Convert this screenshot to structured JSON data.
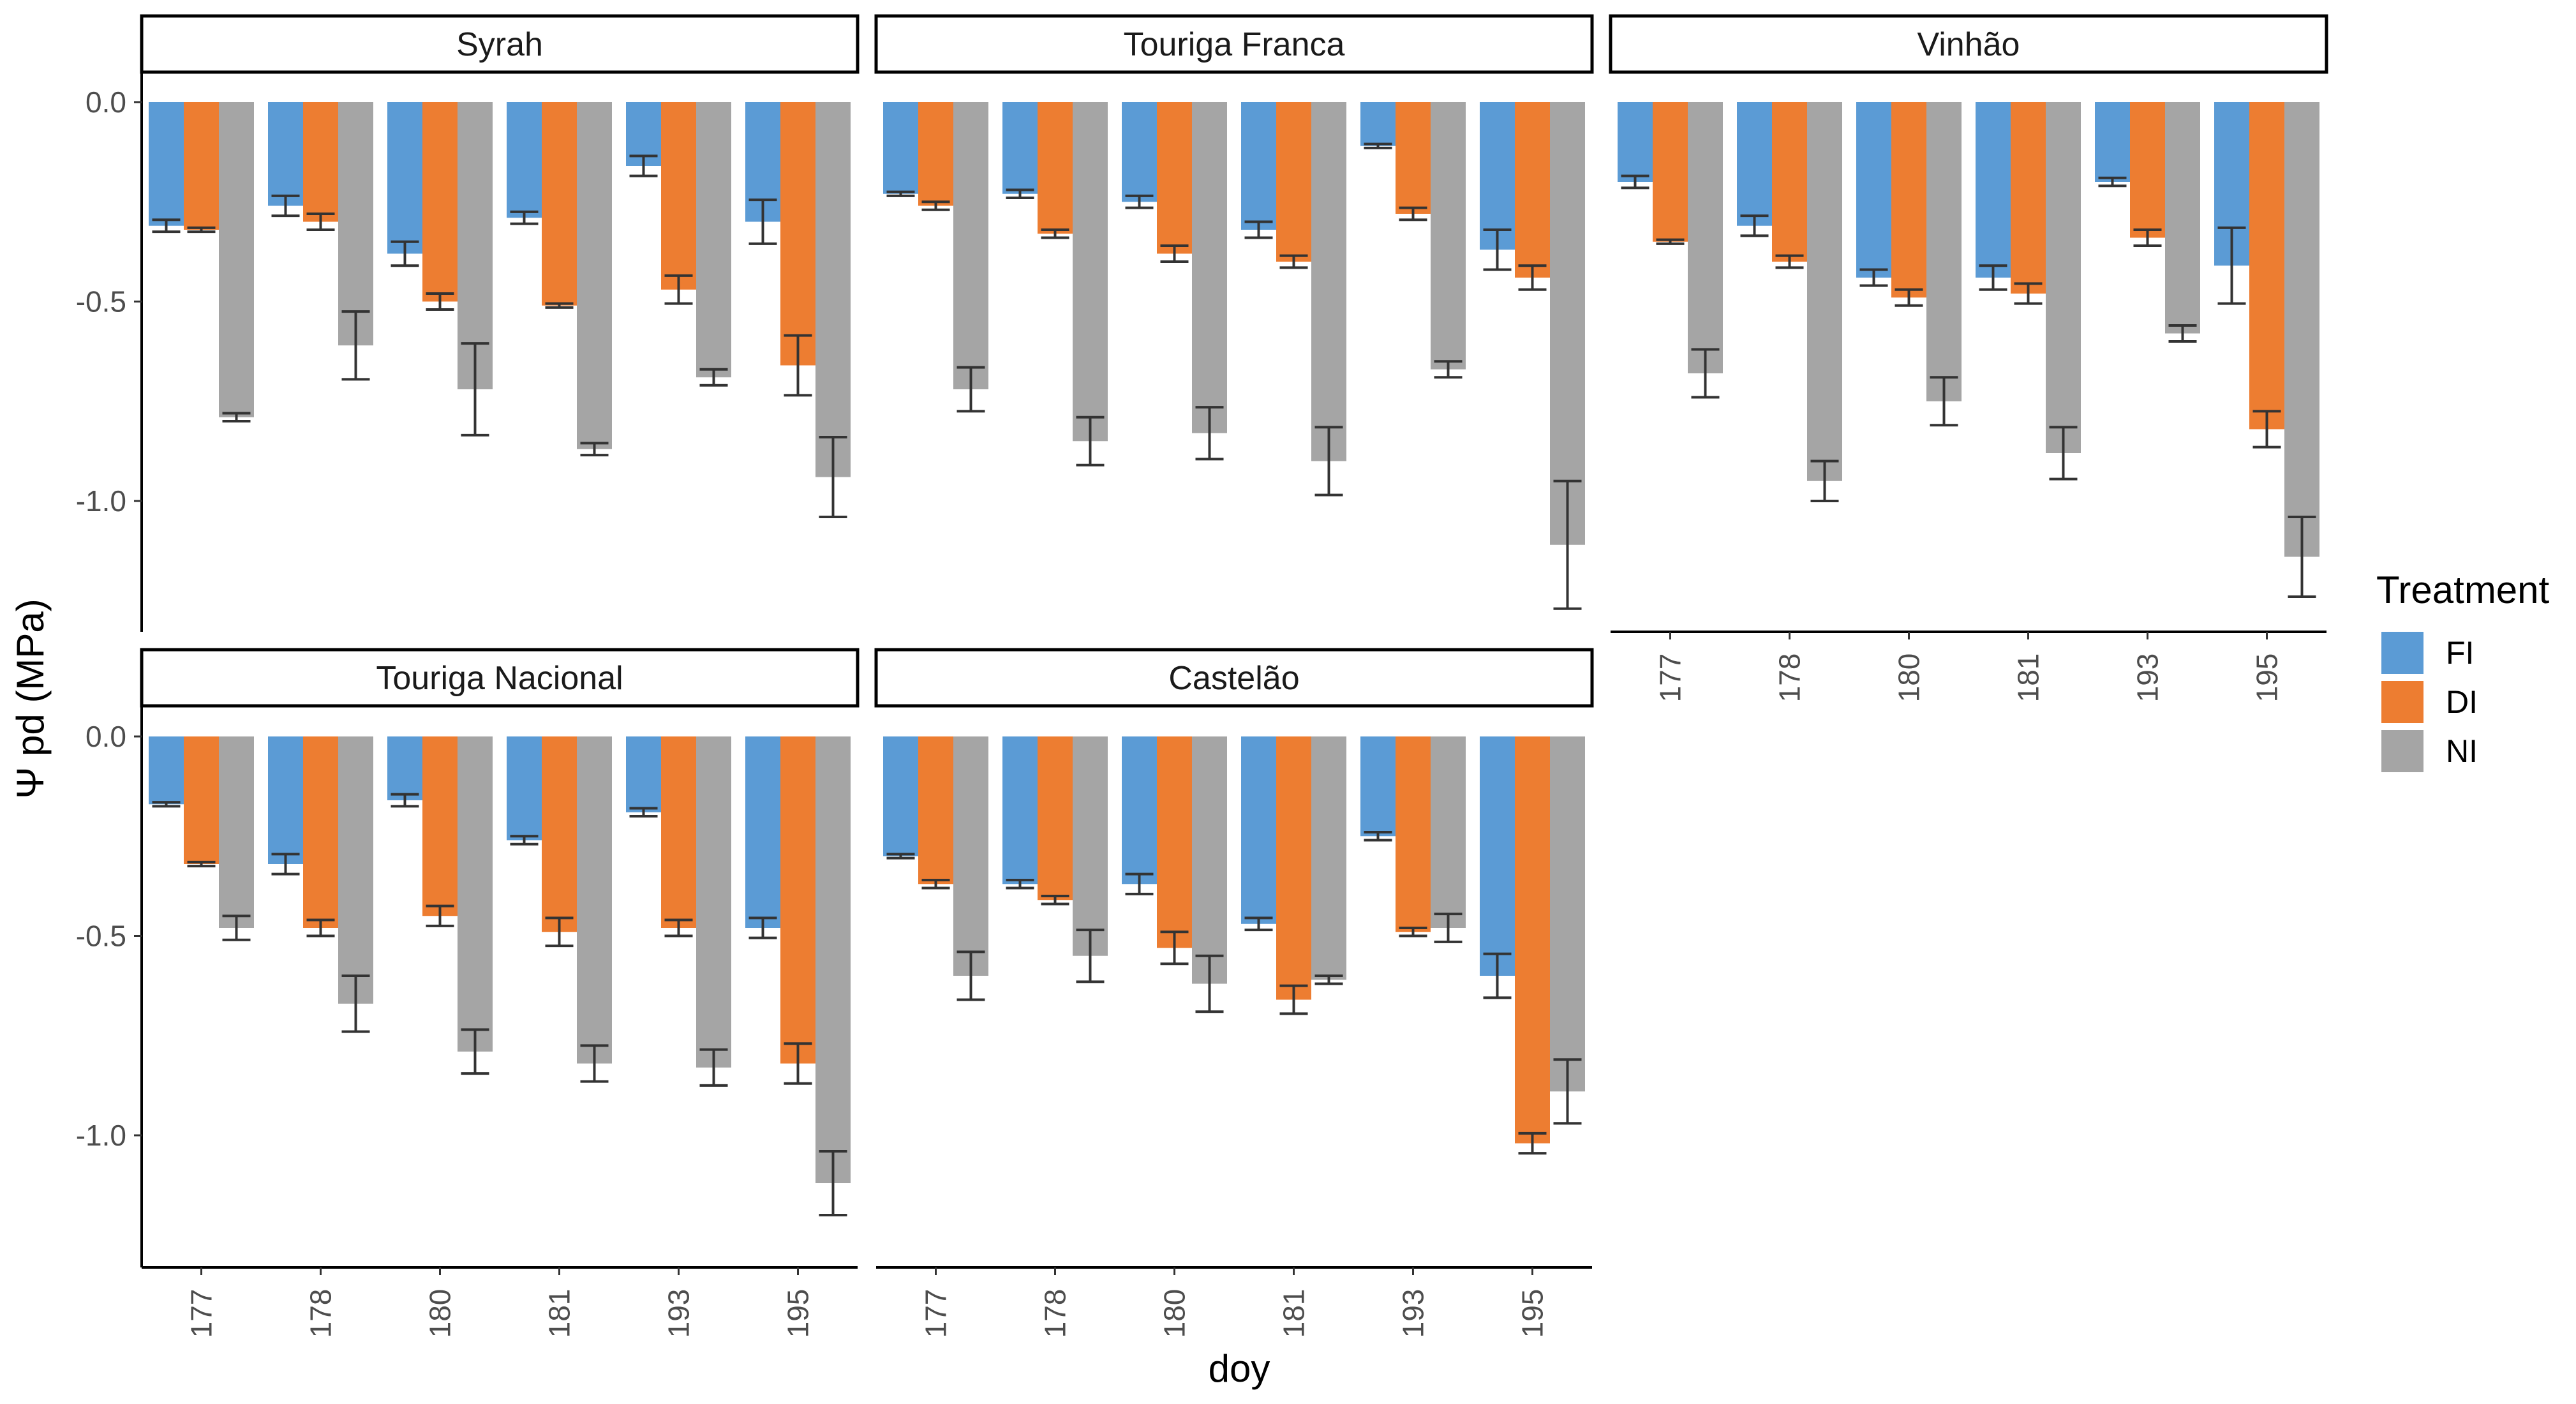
{
  "chart_data": {
    "type": "bar",
    "xlabel": "doy",
    "ylabel": "Ψ pd (MPa)",
    "ylim": [
      -1.32,
      0.05
    ],
    "y_ticks": [
      {
        "value": 0.0,
        "label": "0.0"
      },
      {
        "value": -0.5,
        "label": "-0.5"
      },
      {
        "value": -1.0,
        "label": "-1.0"
      }
    ],
    "categories": [
      "177",
      "178",
      "180",
      "181",
      "193",
      "195"
    ],
    "legend": {
      "title": "Treatment",
      "entries": [
        {
          "name": "FI",
          "color": "#5B9BD5"
        },
        {
          "name": "DI",
          "color": "#ED7D31"
        },
        {
          "name": "NI",
          "color": "#A5A5A5"
        }
      ]
    },
    "panels": [
      {
        "title": "Syrah",
        "series": [
          {
            "name": "FI",
            "values": [
              -0.31,
              -0.26,
              -0.38,
              -0.29,
              -0.16,
              -0.3
            ],
            "errors": [
              0.015,
              0.025,
              0.03,
              0.015,
              0.025,
              0.055
            ]
          },
          {
            "name": "DI",
            "values": [
              -0.32,
              -0.3,
              -0.5,
              -0.51,
              -0.47,
              -0.66
            ],
            "errors": [
              0.005,
              0.02,
              0.02,
              0.005,
              0.035,
              0.075
            ]
          },
          {
            "name": "NI",
            "values": [
              -0.79,
              -0.61,
              -0.72,
              -0.87,
              -0.69,
              -0.94
            ],
            "errors": [
              0.01,
              0.085,
              0.115,
              0.015,
              0.02,
              0.1
            ]
          }
        ]
      },
      {
        "title": "Touriga Franca",
        "series": [
          {
            "name": "FI",
            "values": [
              -0.23,
              -0.23,
              -0.25,
              -0.32,
              -0.11,
              -0.37
            ],
            "errors": [
              0.005,
              0.01,
              0.015,
              0.02,
              0.005,
              0.05
            ]
          },
          {
            "name": "DI",
            "values": [
              -0.26,
              -0.33,
              -0.38,
              -0.4,
              -0.28,
              -0.44
            ],
            "errors": [
              0.01,
              0.01,
              0.02,
              0.015,
              0.015,
              0.03
            ]
          },
          {
            "name": "NI",
            "values": [
              -0.72,
              -0.85,
              -0.83,
              -0.9,
              -0.67,
              -1.11
            ],
            "errors": [
              0.055,
              0.06,
              0.065,
              0.085,
              0.02,
              0.16
            ]
          }
        ]
      },
      {
        "title": "Vinhão",
        "series": [
          {
            "name": "FI",
            "values": [
              -0.2,
              -0.31,
              -0.44,
              -0.44,
              -0.2,
              -0.41
            ],
            "errors": [
              0.015,
              0.025,
              0.02,
              0.03,
              0.01,
              0.095
            ]
          },
          {
            "name": "DI",
            "values": [
              -0.35,
              -0.4,
              -0.49,
              -0.48,
              -0.34,
              -0.82
            ],
            "errors": [
              0.005,
              0.015,
              0.02,
              0.025,
              0.02,
              0.045
            ]
          },
          {
            "name": "NI",
            "values": [
              -0.68,
              -0.95,
              -0.75,
              -0.88,
              -0.58,
              -1.14
            ],
            "errors": [
              0.06,
              0.05,
              0.06,
              0.065,
              0.02,
              0.1
            ]
          }
        ]
      },
      {
        "title": "Touriga Nacional",
        "series": [
          {
            "name": "FI",
            "values": [
              -0.17,
              -0.32,
              -0.16,
              -0.26,
              -0.19,
              -0.48
            ],
            "errors": [
              0.005,
              0.025,
              0.015,
              0.01,
              0.01,
              0.025
            ]
          },
          {
            "name": "DI",
            "values": [
              -0.32,
              -0.48,
              -0.45,
              -0.49,
              -0.48,
              -0.82
            ],
            "errors": [
              0.005,
              0.02,
              0.025,
              0.035,
              0.02,
              0.05
            ]
          },
          {
            "name": "NI",
            "values": [
              -0.48,
              -0.67,
              -0.79,
              -0.82,
              -0.83,
              -1.12
            ],
            "errors": [
              0.03,
              0.07,
              0.055,
              0.045,
              0.045,
              0.08
            ]
          }
        ]
      },
      {
        "title": "Castelão",
        "series": [
          {
            "name": "FI",
            "values": [
              -0.3,
              -0.37,
              -0.37,
              -0.47,
              -0.25,
              -0.6
            ],
            "errors": [
              0.005,
              0.01,
              0.025,
              0.015,
              0.01,
              0.055
            ]
          },
          {
            "name": "DI",
            "values": [
              -0.37,
              -0.41,
              -0.53,
              -0.66,
              -0.49,
              -1.02
            ],
            "errors": [
              0.01,
              0.01,
              0.04,
              0.035,
              0.01,
              0.025
            ]
          },
          {
            "name": "NI",
            "values": [
              -0.6,
              -0.55,
              -0.62,
              -0.61,
              -0.48,
              -0.89
            ],
            "errors": [
              0.06,
              0.065,
              0.07,
              0.01,
              0.035,
              0.08
            ]
          }
        ]
      }
    ]
  }
}
